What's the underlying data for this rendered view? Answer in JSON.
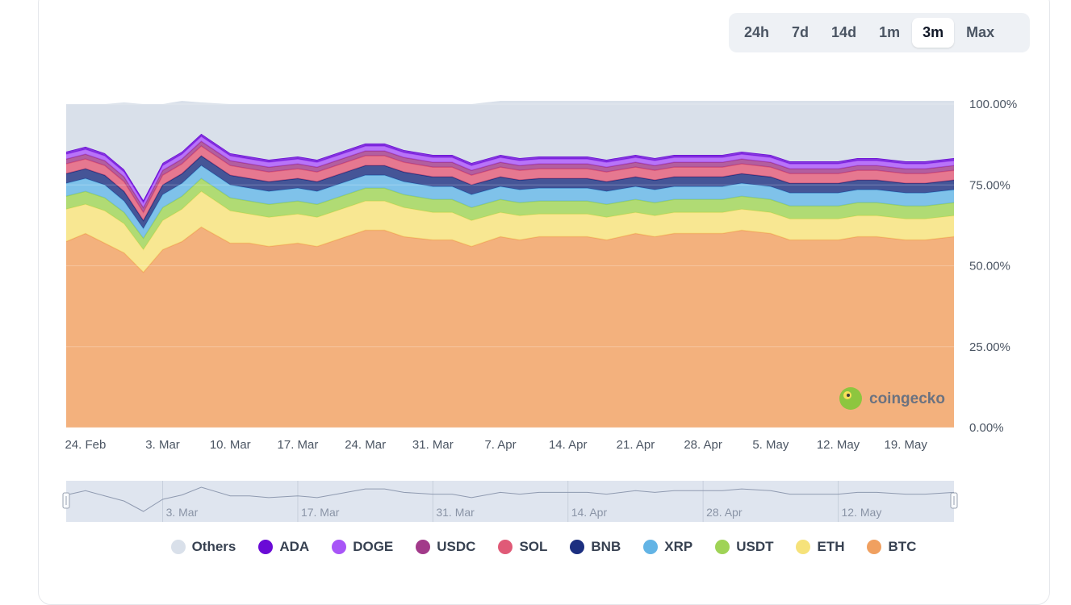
{
  "range_tabs": [
    {
      "label": "24h",
      "active": false
    },
    {
      "label": "7d",
      "active": false
    },
    {
      "label": "14d",
      "active": false
    },
    {
      "label": "1m",
      "active": false
    },
    {
      "label": "3m",
      "active": true
    },
    {
      "label": "Max",
      "active": false
    }
  ],
  "watermark": {
    "text": "coingecko"
  },
  "chart_data": {
    "type": "area",
    "stacking": "percent",
    "x": [
      "2024-02-22",
      "2024-02-24",
      "2024-02-26",
      "2024-02-28",
      "2024-03-01",
      "2024-03-03",
      "2024-03-05",
      "2024-03-07",
      "2024-03-10",
      "2024-03-12",
      "2024-03-14",
      "2024-03-17",
      "2024-03-19",
      "2024-03-21",
      "2024-03-24",
      "2024-03-26",
      "2024-03-28",
      "2024-03-31",
      "2024-04-02",
      "2024-04-04",
      "2024-04-07",
      "2024-04-09",
      "2024-04-11",
      "2024-04-14",
      "2024-04-16",
      "2024-04-18",
      "2024-04-21",
      "2024-04-23",
      "2024-04-25",
      "2024-04-28",
      "2024-04-30",
      "2024-05-02",
      "2024-05-05",
      "2024-05-07",
      "2024-05-09",
      "2024-05-12",
      "2024-05-14",
      "2024-05-16",
      "2024-05-19",
      "2024-05-21",
      "2024-05-24"
    ],
    "x_tick_labels": [
      "24. Feb",
      "3. Mar",
      "10. Mar",
      "17. Mar",
      "24. Mar",
      "31. Mar",
      "7. Apr",
      "14. Apr",
      "21. Apr",
      "28. Apr",
      "5. May",
      "12. May",
      "19. May"
    ],
    "x_tick_dates": [
      "2024-02-24",
      "2024-03-03",
      "2024-03-10",
      "2024-03-17",
      "2024-03-24",
      "2024-03-31",
      "2024-04-07",
      "2024-04-14",
      "2024-04-21",
      "2024-04-28",
      "2024-05-05",
      "2024-05-12",
      "2024-05-19"
    ],
    "y_tick_labels": [
      "100.00%",
      "75.00%",
      "50.00%",
      "25.00%",
      "0.00%"
    ],
    "ylim": [
      0,
      100
    ],
    "navigator_labels": [
      "3. Mar",
      "17. Mar",
      "31. Mar",
      "14. Apr",
      "28. Apr",
      "12. May"
    ],
    "series": [
      {
        "name": "BTC",
        "color": "#f0a060",
        "values": [
          57.5,
          60,
          57,
          54,
          48,
          55,
          57.5,
          62,
          57,
          57,
          56,
          57,
          56,
          58,
          61,
          61,
          59,
          58,
          58,
          56,
          59,
          58,
          59,
          59,
          59,
          58,
          60,
          59,
          60,
          60,
          60,
          61,
          60,
          58,
          58,
          58,
          59,
          59,
          58,
          58,
          59
        ]
      },
      {
        "name": "ETH",
        "color": "#f6e27a",
        "values": [
          10,
          9,
          10,
          9,
          7,
          9,
          10,
          11,
          10,
          9,
          9,
          9,
          9,
          9,
          9,
          9,
          9,
          8.5,
          8.5,
          8,
          7.5,
          7.5,
          7,
          7,
          7,
          7,
          6.5,
          6.5,
          6.5,
          6.5,
          6.5,
          6.5,
          6.5,
          6.5,
          6.5,
          6.5,
          6.5,
          6.5,
          6.5,
          6.5,
          6.5
        ]
      },
      {
        "name": "USDT",
        "color": "#9fd356",
        "values": [
          4,
          4,
          4,
          3.5,
          3.5,
          4,
          4,
          4,
          4,
          4,
          4,
          4,
          4,
          4,
          4,
          4,
          4,
          4,
          4,
          4,
          4,
          4,
          4,
          4,
          4,
          4,
          4,
          4,
          4,
          4,
          4,
          4,
          4,
          4,
          4,
          4,
          4,
          4,
          4,
          4,
          4
        ]
      },
      {
        "name": "XRP",
        "color": "#63b4e5",
        "values": [
          4,
          4,
          4,
          3.5,
          3,
          4,
          4,
          4,
          4,
          4,
          4,
          4,
          4,
          4,
          4,
          4,
          4,
          4,
          4,
          4,
          4,
          4,
          4,
          4,
          4,
          4,
          4,
          4,
          4,
          4,
          4,
          4,
          4,
          4,
          4,
          4,
          4,
          4,
          4,
          4,
          4
        ]
      },
      {
        "name": "BNB",
        "color": "#1c2f80",
        "values": [
          3,
          3,
          3,
          3,
          2.5,
          3,
          3,
          3,
          3,
          3,
          3,
          3,
          3,
          3,
          3,
          3,
          3,
          3,
          3,
          3,
          3,
          3,
          3,
          3,
          3,
          3,
          3,
          3,
          3,
          3,
          3,
          3,
          3,
          3,
          3,
          3,
          3,
          3,
          3,
          3,
          3
        ]
      },
      {
        "name": "SOL",
        "color": "#e05a77",
        "values": [
          3,
          3,
          3,
          3,
          2.5,
          3,
          3,
          3,
          3,
          3,
          3,
          3,
          3,
          3,
          3,
          3,
          3,
          3,
          3,
          3,
          3,
          3,
          3,
          3,
          3,
          3,
          3,
          3,
          3,
          3,
          3,
          3,
          3,
          3,
          3,
          3,
          3,
          3,
          3,
          3,
          3
        ]
      },
      {
        "name": "USDC",
        "color": "#a23a8a",
        "values": [
          1.5,
          1.5,
          1.5,
          1.5,
          1.5,
          1.5,
          1.5,
          1.5,
          1.5,
          1.5,
          1.5,
          1.5,
          1.5,
          1.5,
          1.5,
          1.5,
          1.5,
          1.5,
          1.5,
          1.5,
          1.5,
          1.5,
          1.5,
          1.5,
          1.5,
          1.5,
          1.5,
          1.5,
          1.5,
          1.5,
          1.5,
          1.5,
          1.5,
          1.5,
          1.5,
          1.5,
          1.5,
          1.5,
          1.5,
          1.5,
          1.5
        ]
      },
      {
        "name": "DOGE",
        "color": "#a855f7",
        "values": [
          1.5,
          1.5,
          1.5,
          1.5,
          1.5,
          1.5,
          1.5,
          1.5,
          1.5,
          1.5,
          1.5,
          1.5,
          1.5,
          1.5,
          1.5,
          1.5,
          1.5,
          1.5,
          1.5,
          1.5,
          1.5,
          1.5,
          1.5,
          1.5,
          1.5,
          1.5,
          1.5,
          1.5,
          1.5,
          1.5,
          1.5,
          1.5,
          1.5,
          1.5,
          1.5,
          1.5,
          1.5,
          1.5,
          1.5,
          1.5,
          1.5
        ]
      },
      {
        "name": "ADA",
        "color": "#6a0bd6",
        "values": [
          0.8,
          0.8,
          0.8,
          0.8,
          0.8,
          0.8,
          0.8,
          0.8,
          0.8,
          0.8,
          0.8,
          0.8,
          0.8,
          0.8,
          0.8,
          0.8,
          0.8,
          0.8,
          0.8,
          0.8,
          0.8,
          0.8,
          0.8,
          0.8,
          0.8,
          0.8,
          0.8,
          0.8,
          0.8,
          0.8,
          0.8,
          0.8,
          0.8,
          0.8,
          0.8,
          0.8,
          0.8,
          0.8,
          0.8,
          0.8,
          0.8
        ]
      },
      {
        "name": "Others",
        "color": "#d9e0ea",
        "values": [
          14.7,
          13.2,
          15.2,
          20.7,
          29.7,
          18.2,
          15.7,
          9.7,
          15.2,
          16.2,
          17.2,
          16.2,
          17.2,
          15.2,
          12.2,
          12.2,
          14.2,
          15.7,
          15.7,
          18.2,
          16.7,
          17.7,
          17.2,
          17.2,
          17.2,
          18.2,
          16.7,
          17.7,
          16.7,
          16.7,
          16.7,
          15.7,
          16.7,
          18.7,
          18.7,
          18.7,
          17.7,
          17.7,
          18.7,
          18.7,
          17.7
        ]
      }
    ]
  }
}
